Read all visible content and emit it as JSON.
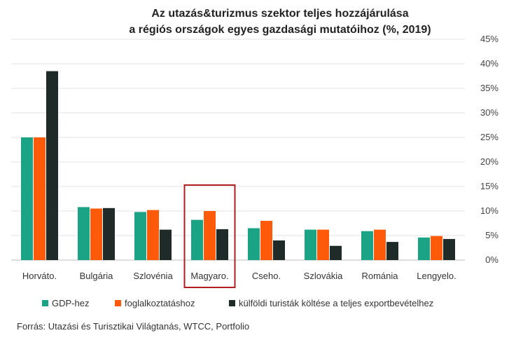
{
  "chart_data": {
    "type": "bar",
    "title_lines": [
      "Az utazás&turizmus szektor teljes hozzájárulása",
      "a régiós országok egyes gazdasági mutatóihoz (%, 2019)"
    ],
    "categories": [
      "Horváto.",
      "Bulgária",
      "Szlovénia",
      "Magyaro.",
      "Cseho.",
      "Szlovákia",
      "Románia",
      "Lengyelo."
    ],
    "series": [
      {
        "name": "GDP-hez",
        "color": "#1aa385",
        "values": [
          25.0,
          10.8,
          9.8,
          8.2,
          6.5,
          6.2,
          5.9,
          4.6
        ]
      },
      {
        "name": "foglalkoztatáshoz",
        "color": "#ff5a0a",
        "values": [
          25.0,
          10.5,
          10.2,
          10.0,
          8.0,
          6.2,
          6.2,
          4.9
        ]
      },
      {
        "name": "külföldi turisták költése a teljes exportbevételhez",
        "color": "#1e2b28",
        "values": [
          38.5,
          10.6,
          6.2,
          6.3,
          4.0,
          2.9,
          3.7,
          4.3
        ]
      }
    ],
    "ylim": [
      0,
      45
    ],
    "yticks": [
      "0%",
      "5%",
      "10%",
      "15%",
      "20%",
      "25%",
      "30%",
      "35%",
      "40%",
      "45%"
    ],
    "ytick_values": [
      0,
      5,
      10,
      15,
      20,
      25,
      30,
      35,
      40,
      45
    ],
    "y_axis_position": "right",
    "grid": true,
    "legend_position": "bottom",
    "highlight_category": "Magyaro.",
    "highlight_color": "#b21e1e",
    "source": "Forrás: Utazási és Turisztikai Világtanás, WTCC, Portfolio"
  }
}
